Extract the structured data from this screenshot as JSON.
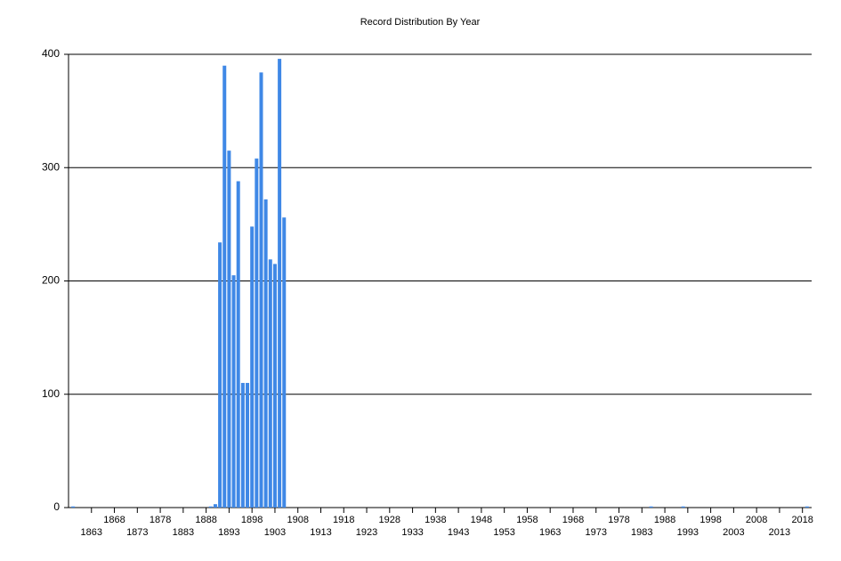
{
  "chart_data": {
    "type": "bar",
    "title": "Record Distribution By Year",
    "x": [
      1859,
      1889,
      1890,
      1891,
      1892,
      1893,
      1894,
      1895,
      1896,
      1897,
      1898,
      1899,
      1900,
      1901,
      1902,
      1903,
      1904,
      1905,
      1985,
      1992,
      2019
    ],
    "values": [
      1,
      1,
      3,
      234,
      390,
      315,
      205,
      288,
      110,
      110,
      248,
      308,
      384,
      272,
      219,
      215,
      396,
      256,
      1,
      1,
      1
    ],
    "color": "#3f88e6",
    "xlim": [
      1858,
      2020
    ],
    "xticks": [
      1863,
      1868,
      1873,
      1878,
      1883,
      1888,
      1893,
      1898,
      1903,
      1908,
      1913,
      1918,
      1923,
      1928,
      1933,
      1938,
      1943,
      1948,
      1953,
      1958,
      1963,
      1968,
      1973,
      1978,
      1983,
      1988,
      1993,
      1998,
      2003,
      2008,
      2013,
      2018
    ],
    "ylim": [
      0,
      400
    ],
    "yticks": [
      0,
      100,
      200,
      300,
      400
    ],
    "grid": true
  }
}
